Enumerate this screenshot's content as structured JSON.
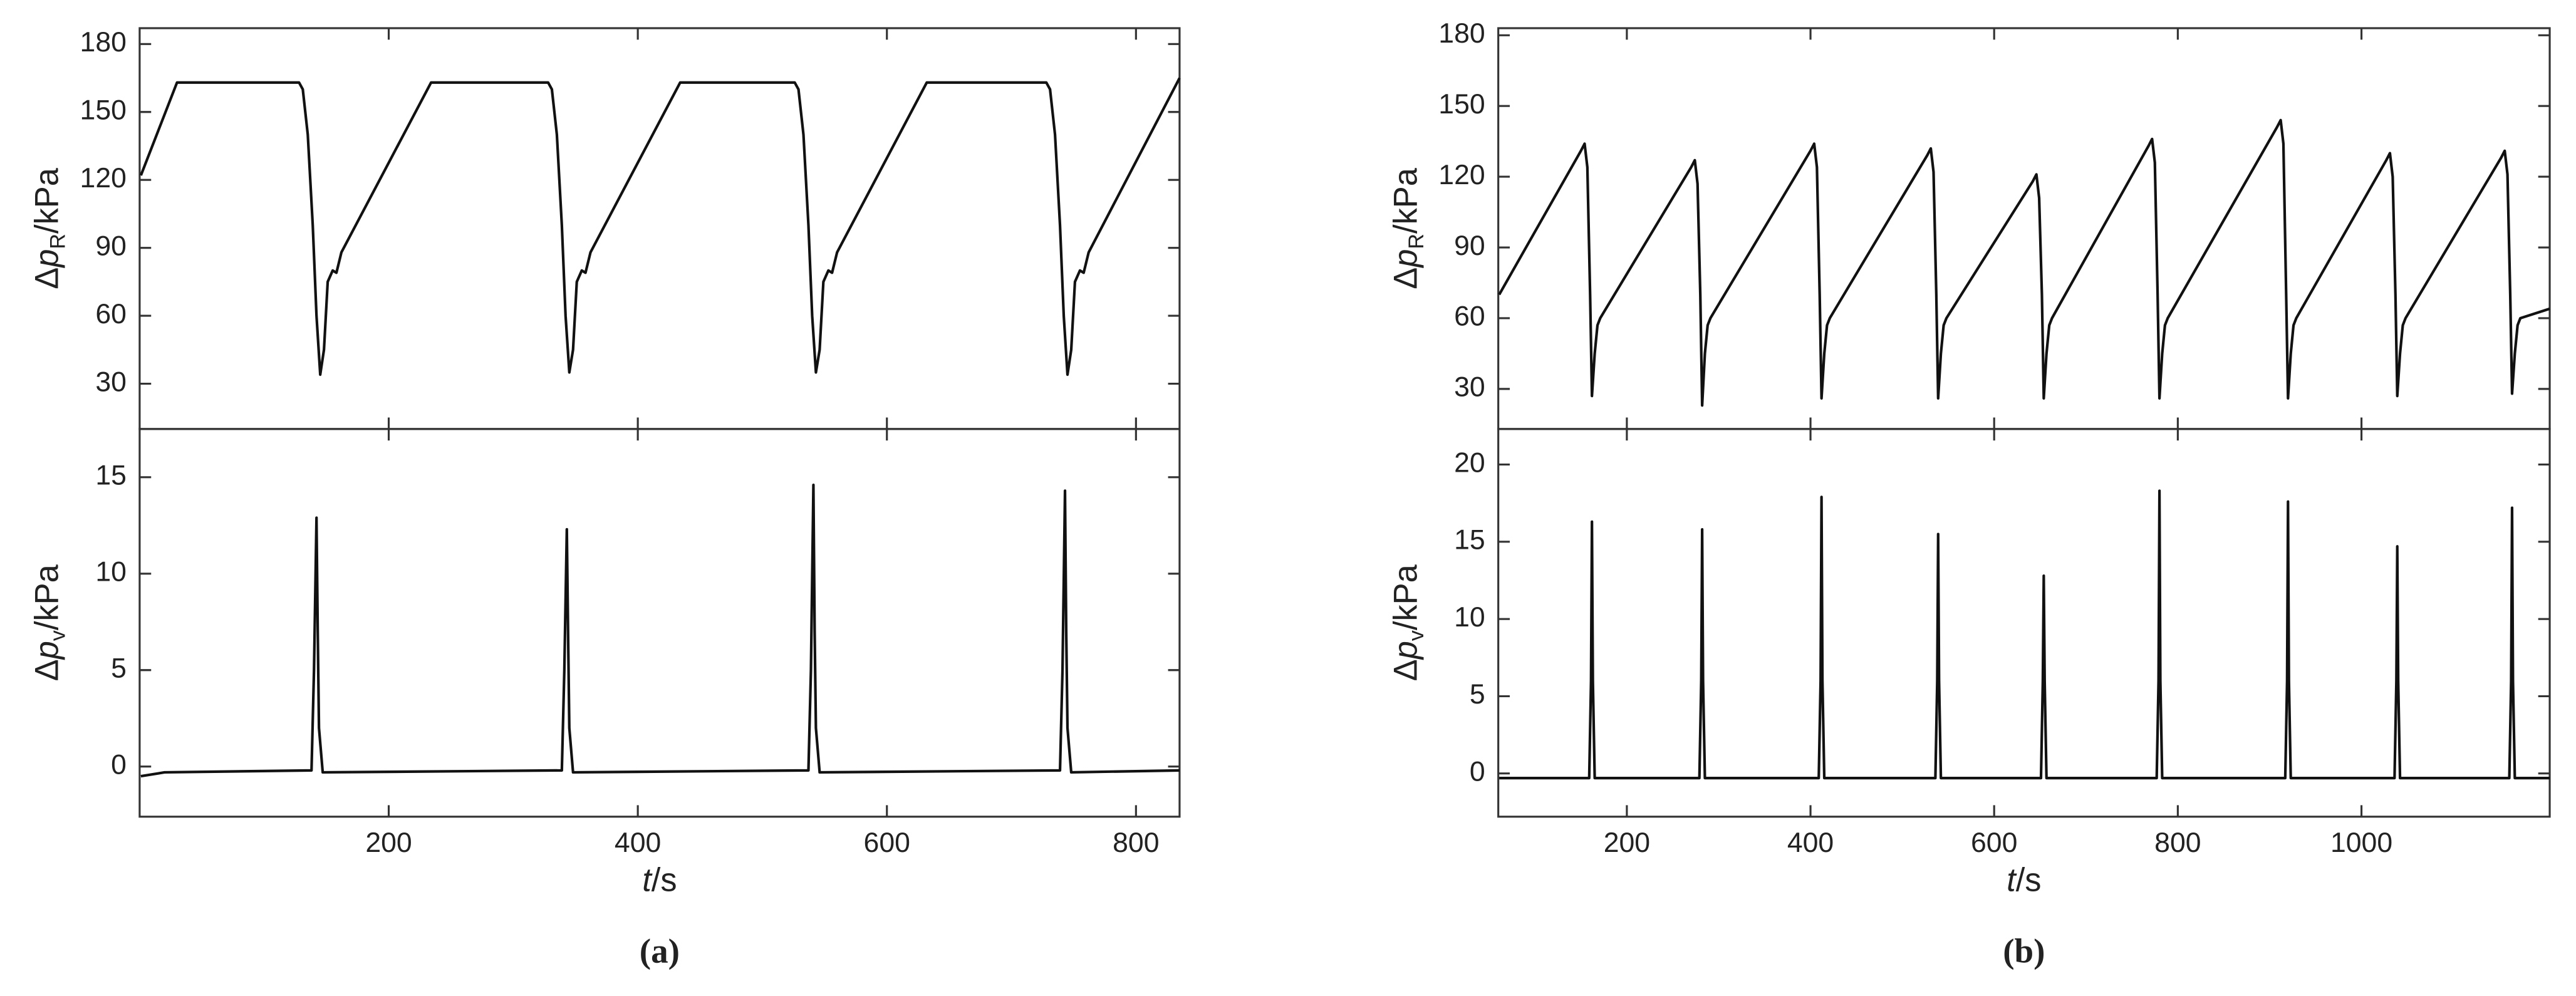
{
  "chart_data": [
    {
      "type": "line",
      "color": "#111111",
      "ylabel": [
        "Δ",
        "p",
        "R",
        "/kPa"
      ],
      "x": [
        1,
        30,
        128,
        131,
        135,
        139,
        142,
        145,
        148,
        151,
        155,
        158,
        162,
        234,
        328,
        331,
        335,
        339,
        342,
        345,
        348,
        351,
        355,
        358,
        362,
        434,
        526,
        529,
        533,
        537,
        540,
        543,
        546,
        549,
        553,
        556,
        560,
        632,
        728,
        731,
        735,
        739,
        742,
        745,
        748,
        751,
        755,
        758,
        762,
        835
      ],
      "values": [
        122,
        163,
        163,
        160,
        140,
        100,
        60,
        34,
        45,
        75,
        80,
        79,
        88,
        163,
        163,
        160,
        140,
        100,
        60,
        35,
        45,
        75,
        80,
        79,
        88,
        163,
        163,
        160,
        140,
        100,
        60,
        35,
        45,
        75,
        80,
        79,
        88,
        163,
        163,
        160,
        140,
        100,
        60,
        34,
        45,
        75,
        80,
        79,
        88,
        165
      ],
      "xlim": [
        0,
        835
      ],
      "ylim": [
        10,
        187
      ],
      "yticks": [
        30,
        60,
        90,
        120,
        150,
        180
      ]
    },
    {
      "type": "line",
      "color": "#111111",
      "ylabel": [
        "Δ",
        "p",
        "v",
        "/kPa"
      ],
      "xlabel": [
        "t",
        "/s"
      ],
      "panel_label": "(a)",
      "x": [
        1,
        20,
        138,
        140,
        142,
        143,
        144,
        147,
        339,
        341,
        343,
        344,
        345,
        348,
        537,
        539,
        541,
        542,
        543,
        546,
        739,
        741,
        743,
        744,
        745,
        748,
        835
      ],
      "values": [
        -0.5,
        -0.3,
        -0.2,
        5,
        12.9,
        7,
        2,
        -0.3,
        -0.2,
        5,
        12.3,
        7,
        2,
        -0.3,
        -0.2,
        5,
        14.6,
        7,
        2,
        -0.3,
        -0.2,
        5,
        14.3,
        7,
        2,
        -0.3,
        -0.2
      ],
      "xlim": [
        0,
        835
      ],
      "ylim": [
        -2.6,
        17.5
      ],
      "yticks": [
        0,
        5,
        10,
        15
      ],
      "xticks": [
        200,
        400,
        600,
        800
      ]
    },
    {
      "type": "line",
      "color": "#111111",
      "ylabel": [
        "Δ",
        "p",
        "R",
        "/kPa"
      ],
      "x": [
        61,
        150,
        154,
        157,
        160,
        162,
        165,
        168,
        171,
        270,
        274,
        277,
        280,
        282,
        285,
        288,
        291,
        400,
        404,
        407,
        410,
        412,
        415,
        418,
        421,
        527,
        531,
        534,
        537,
        539,
        542,
        545,
        548,
        642,
        646,
        649,
        652,
        654,
        657,
        660,
        663,
        768,
        772,
        775,
        778,
        780,
        783,
        786,
        789,
        908,
        912,
        915,
        918,
        920,
        923,
        926,
        929,
        1027,
        1031,
        1034,
        1037,
        1039,
        1042,
        1045,
        1048,
        1152,
        1156,
        1159,
        1162,
        1164,
        1167,
        1170,
        1173,
        1205
      ],
      "values": [
        70,
        131,
        134,
        124,
        70,
        27,
        45,
        57,
        60,
        124,
        127,
        117,
        70,
        23,
        45,
        57,
        60,
        131,
        134,
        124,
        70,
        26,
        45,
        57,
        60,
        129,
        132,
        122,
        70,
        26,
        45,
        57,
        60,
        118,
        121,
        111,
        70,
        26,
        45,
        57,
        60,
        133,
        136,
        126,
        70,
        26,
        45,
        57,
        60,
        141,
        144,
        134,
        70,
        26,
        45,
        57,
        60,
        127,
        130,
        120,
        70,
        27,
        45,
        57,
        60,
        128,
        131,
        121,
        70,
        28,
        45,
        57,
        60,
        64
      ],
      "xlim": [
        60,
        1205
      ],
      "ylim": [
        13,
        183
      ],
      "yticks": [
        30,
        60,
        90,
        120,
        150,
        180
      ]
    },
    {
      "type": "line",
      "color": "#111111",
      "ylabel": [
        "Δ",
        "p",
        "v",
        "/kPa"
      ],
      "xlabel": [
        "t",
        "/s"
      ],
      "panel_label": "(b)",
      "x": [
        61,
        159,
        161,
        162,
        163,
        165,
        279,
        281,
        282,
        283,
        285,
        409,
        411,
        412,
        413,
        415,
        536,
        538,
        539,
        540,
        542,
        651,
        653,
        654,
        655,
        657,
        777,
        779,
        780,
        781,
        783,
        917,
        919,
        920,
        921,
        923,
        1036,
        1038,
        1039,
        1040,
        1042,
        1161,
        1163,
        1164,
        1165,
        1167,
        1205
      ],
      "values": [
        -0.3,
        -0.3,
        6,
        16.3,
        6,
        -0.3,
        -0.3,
        6,
        15.8,
        6,
        -0.3,
        -0.3,
        6,
        17.9,
        6,
        -0.3,
        -0.3,
        6,
        15.5,
        6,
        -0.3,
        -0.3,
        6,
        12.8,
        6,
        -0.3,
        -0.3,
        6,
        18.3,
        6,
        -0.3,
        -0.3,
        6,
        17.6,
        6,
        -0.3,
        -0.3,
        6,
        14.7,
        6,
        -0.3,
        -0.3,
        6,
        17.2,
        6,
        -0.3,
        -0.3
      ],
      "xlim": [
        60,
        1205
      ],
      "ylim": [
        -2.8,
        22.3
      ],
      "yticks": [
        0,
        5,
        10,
        15,
        20
      ],
      "xticks": [
        200,
        400,
        600,
        800,
        1000
      ]
    }
  ]
}
